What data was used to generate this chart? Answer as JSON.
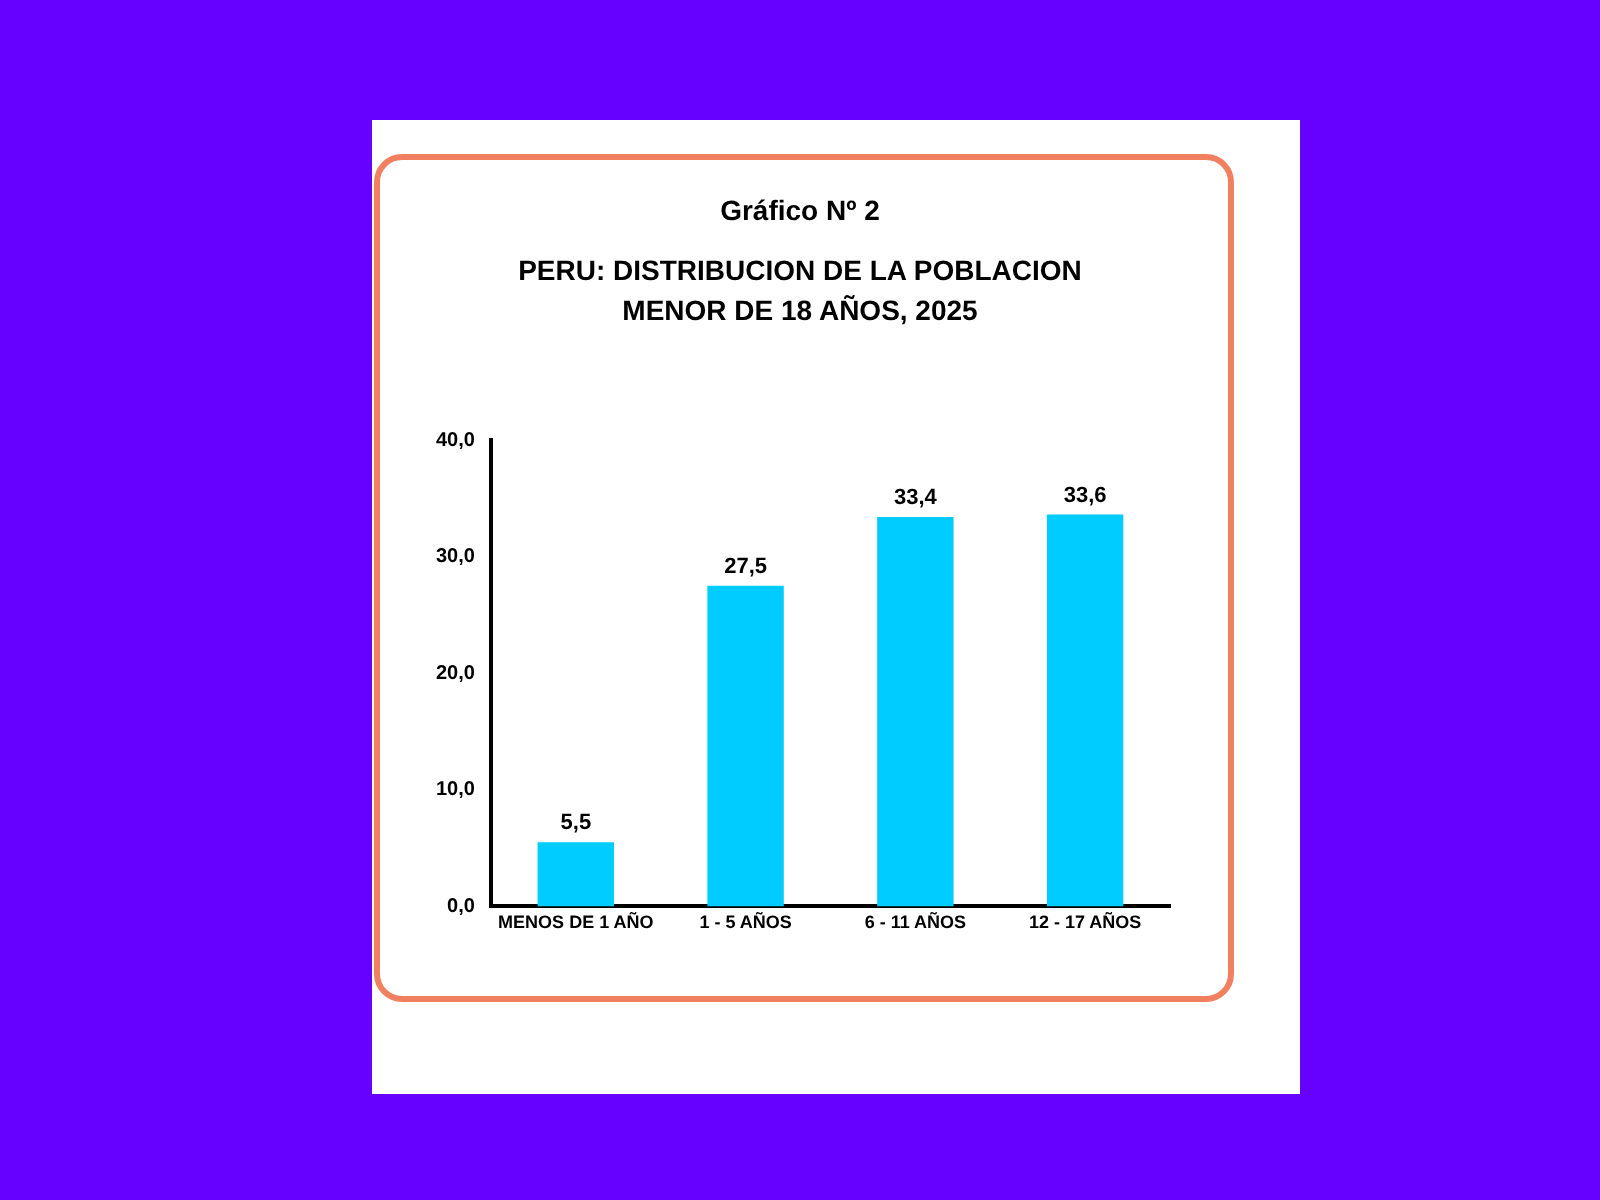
{
  "chart_data": {
    "type": "bar",
    "title": "Gráfico Nº 2",
    "subtitle": "PERU: DISTRIBUCION DE LA POBLACION MENOR DE 18 AÑOS, 2025",
    "categories": [
      "MENOS DE 1 AÑO",
      "1 - 5 AÑOS",
      "6 - 11 AÑOS",
      "12 - 17 AÑOS"
    ],
    "values": [
      5.5,
      27.5,
      33.4,
      33.6
    ],
    "value_labels": [
      "5,5",
      "27,5",
      "33,4",
      "33,6"
    ],
    "color": "#00ccff",
    "ylim": [
      0,
      40
    ],
    "yticks": [
      {
        "value": 0,
        "label": "0,0"
      },
      {
        "value": 10,
        "label": "10,0"
      },
      {
        "value": 20,
        "label": "20,0"
      },
      {
        "value": 30,
        "label": "30,0"
      },
      {
        "value": 40,
        "label": "40,0"
      }
    ],
    "grid": false,
    "legend": false
  }
}
